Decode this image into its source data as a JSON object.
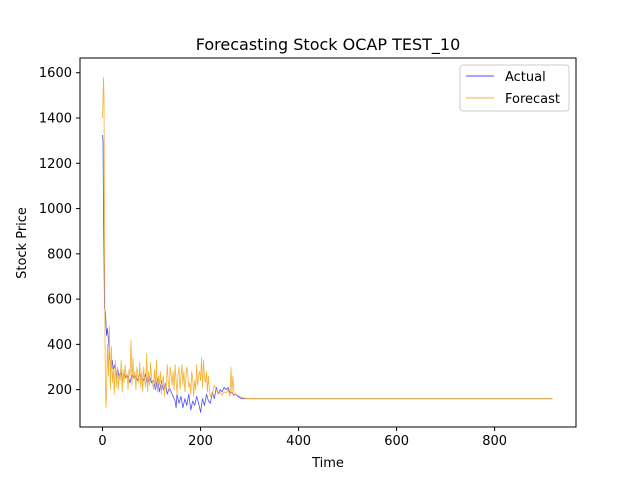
{
  "chart_data": {
    "type": "line",
    "title": "Forecasting Stock OCAP TEST_10",
    "xlabel": "Time",
    "ylabel": "Stock Price",
    "xlim": [
      -46,
      966
    ],
    "ylim": [
      35,
      1665
    ],
    "xticks": [
      0,
      200,
      400,
      600,
      800
    ],
    "yticks": [
      200,
      400,
      600,
      800,
      1000,
      1200,
      1400,
      1600
    ],
    "grid": false,
    "legend_position": "top-right",
    "series": [
      {
        "name": "Actual",
        "color": "#4d4dff",
        "x": [
          0,
          1,
          2,
          4,
          6,
          8,
          10,
          12,
          14,
          16,
          18,
          20,
          22,
          25,
          28,
          31,
          34,
          37,
          40,
          44,
          48,
          52,
          56,
          60,
          64,
          68,
          72,
          76,
          80,
          84,
          88,
          92,
          96,
          100,
          104,
          108,
          112,
          116,
          120,
          124,
          128,
          132,
          136,
          140,
          144,
          148,
          150,
          152,
          156,
          160,
          164,
          168,
          172,
          176,
          180,
          184,
          188,
          192,
          196,
          200,
          204,
          208,
          212,
          216,
          220,
          224,
          228,
          232,
          236,
          240,
          244,
          248,
          252,
          256,
          260,
          264,
          268,
          272,
          276,
          280,
          285,
          290,
          300,
          400,
          500,
          600,
          700,
          800,
          918
        ],
        "y": [
          1325,
          1300,
          1000,
          560,
          540,
          440,
          470,
          420,
          340,
          320,
          300,
          330,
          290,
          310,
          260,
          290,
          250,
          280,
          240,
          270,
          250,
          260,
          230,
          270,
          250,
          260,
          240,
          270,
          250,
          240,
          270,
          220,
          260,
          230,
          240,
          200,
          250,
          190,
          240,
          200,
          230,
          180,
          210,
          190,
          170,
          150,
          120,
          180,
          140,
          170,
          120,
          160,
          130,
          180,
          110,
          150,
          130,
          170,
          140,
          100,
          160,
          130,
          180,
          150,
          140,
          190,
          160,
          210,
          180,
          200,
          190,
          210,
          200,
          210,
          185,
          190,
          175,
          180,
          170,
          165,
          160,
          160,
          160,
          160,
          160,
          160,
          160,
          160,
          160
        ]
      },
      {
        "name": "Forecast",
        "color": "#f5b133",
        "x": [
          0,
          1,
          2,
          3,
          4,
          5,
          6,
          7,
          8,
          9,
          10,
          12,
          14,
          16,
          18,
          20,
          22,
          24,
          26,
          28,
          30,
          32,
          34,
          36,
          38,
          40,
          42,
          44,
          46,
          48,
          50,
          52,
          54,
          56,
          58,
          60,
          62,
          64,
          66,
          68,
          70,
          72,
          74,
          76,
          78,
          80,
          82,
          84,
          86,
          88,
          90,
          92,
          94,
          96,
          98,
          100,
          102,
          104,
          106,
          108,
          110,
          112,
          114,
          116,
          118,
          120,
          122,
          124,
          126,
          128,
          130,
          132,
          134,
          136,
          138,
          140,
          142,
          144,
          146,
          148,
          150,
          152,
          154,
          156,
          158,
          160,
          162,
          164,
          166,
          168,
          170,
          172,
          174,
          176,
          178,
          180,
          182,
          184,
          186,
          188,
          190,
          192,
          194,
          196,
          198,
          200,
          202,
          204,
          206,
          208,
          210,
          212,
          214,
          216,
          218,
          220,
          224,
          228,
          232,
          236,
          240,
          244,
          248,
          252,
          256,
          260,
          262,
          264,
          266,
          268,
          272,
          276,
          280,
          285,
          290,
          300,
          400,
          500,
          600,
          700,
          800,
          918
        ],
        "y": [
          1400,
          1480,
          1580,
          1500,
          900,
          400,
          200,
          120,
          180,
          300,
          400,
          260,
          480,
          200,
          390,
          230,
          290,
          180,
          330,
          210,
          300,
          200,
          270,
          240,
          330,
          190,
          290,
          230,
          310,
          250,
          270,
          200,
          290,
          260,
          420,
          220,
          340,
          250,
          280,
          200,
          300,
          270,
          230,
          320,
          210,
          280,
          190,
          300,
          240,
          210,
          360,
          190,
          280,
          220,
          320,
          250,
          230,
          200,
          290,
          210,
          330,
          190,
          260,
          220,
          280,
          180,
          240,
          260,
          170,
          230,
          210,
          310,
          240,
          190,
          300,
          260,
          220,
          280,
          200,
          310,
          240,
          180,
          270,
          300,
          200,
          260,
          310,
          220,
          280,
          190,
          250,
          300,
          270,
          210,
          230,
          180,
          280,
          250,
          170,
          240,
          200,
          310,
          220,
          260,
          280,
          240,
          340,
          210,
          330,
          250,
          230,
          280,
          190,
          260,
          200,
          170,
          180,
          220,
          200,
          180,
          190,
          175,
          190,
          185,
          200,
          170,
          300,
          180,
          260,
          190,
          180,
          175,
          170,
          165,
          162,
          160,
          160,
          160,
          160,
          160,
          160,
          160
        ]
      }
    ]
  }
}
